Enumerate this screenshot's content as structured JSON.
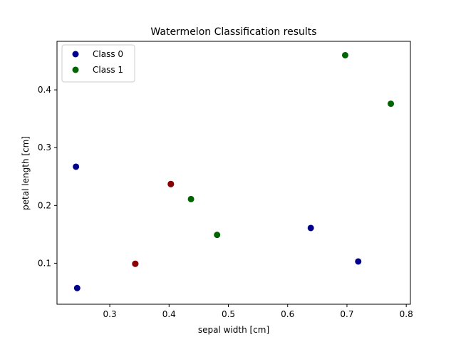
{
  "chart_data": {
    "type": "scatter",
    "title": "Watermelon Classification results",
    "xlabel": "sepal width [cm]",
    "ylabel": "petal length [cm]",
    "xlim": [
      0.211,
      0.807
    ],
    "ylim": [
      0.029,
      0.484
    ],
    "xticks": [
      0.3,
      0.4,
      0.5,
      0.6,
      0.7,
      0.8
    ],
    "yticks": [
      0.1,
      0.2,
      0.3,
      0.4
    ],
    "xtick_labels": [
      "0.3",
      "0.4",
      "0.5",
      "0.6",
      "0.7",
      "0.8"
    ],
    "ytick_labels": [
      "0.1",
      "0.2",
      "0.3",
      "0.4"
    ],
    "grid": false,
    "legend_position": "top-left",
    "series": [
      {
        "name": "Class 0",
        "color": "#00008b",
        "points": [
          {
            "x": 0.243,
            "y": 0.267
          },
          {
            "x": 0.245,
            "y": 0.057
          },
          {
            "x": 0.639,
            "y": 0.161
          },
          {
            "x": 0.719,
            "y": 0.103
          },
          {
            "x": 0.403,
            "y": 0.237
          },
          {
            "x": 0.343,
            "y": 0.099
          }
        ]
      },
      {
        "name": "Class 1",
        "color": "#006400",
        "points": [
          {
            "x": 0.697,
            "y": 0.46
          },
          {
            "x": 0.774,
            "y": 0.376
          },
          {
            "x": 0.437,
            "y": 0.211
          },
          {
            "x": 0.481,
            "y": 0.149
          }
        ]
      },
      {
        "color": "#8b0000",
        "points": [
          {
            "x": 0.403,
            "y": 0.237
          },
          {
            "x": 0.343,
            "y": 0.099
          }
        ]
      }
    ]
  }
}
